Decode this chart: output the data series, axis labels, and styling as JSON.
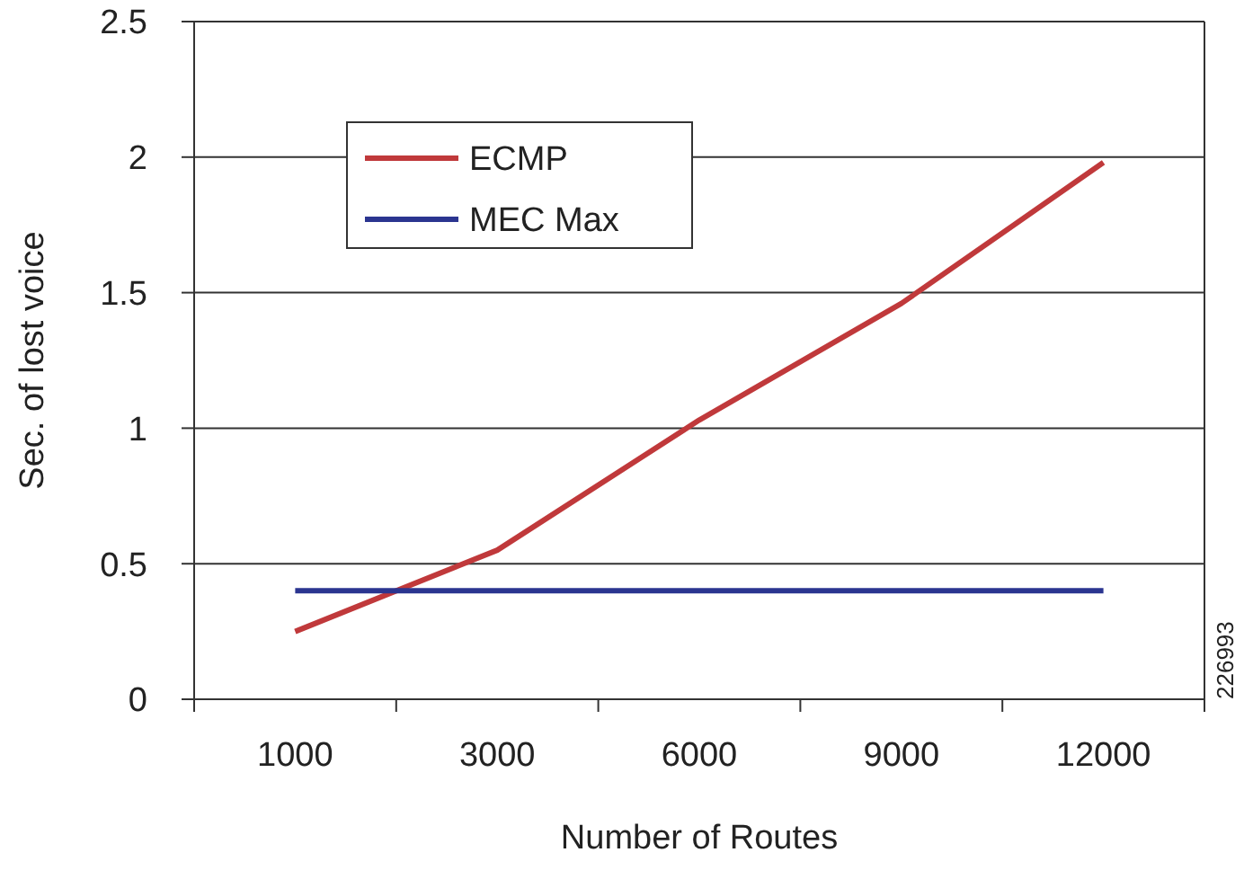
{
  "chart_data": {
    "type": "line",
    "xlabel": "Number of Routes",
    "ylabel": "Sec. of lost voice",
    "categories": [
      "1000",
      "3000",
      "6000",
      "9000",
      "12000"
    ],
    "series": [
      {
        "name": "ECMP",
        "color": "#c0393b",
        "values": [
          0.25,
          0.55,
          1.03,
          1.46,
          1.98
        ]
      },
      {
        "name": "MEC Max",
        "color": "#2b3590",
        "values": [
          0.4,
          0.4,
          0.4,
          0.4,
          0.4
        ]
      }
    ],
    "ylim": [
      0,
      2.5
    ],
    "yticks": [
      0,
      0.5,
      1,
      1.5,
      2,
      2.5
    ],
    "grid": "y",
    "legend": "top left",
    "marker": "none",
    "line_style": "solid",
    "annotations": [
      "226993"
    ]
  }
}
